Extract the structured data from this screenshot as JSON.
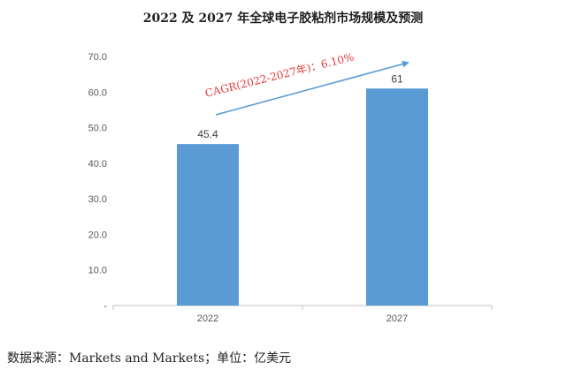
{
  "chart_data": {
    "type": "bar",
    "title": "2022 及 2027 年全球电子胶粘剂市场规模及预测",
    "categories": [
      "2022",
      "2027"
    ],
    "values": [
      45.4,
      61
    ],
    "value_labels": [
      "45.4",
      "61"
    ],
    "ylim": [
      0,
      70
    ],
    "yticks": [
      "-",
      "10.0",
      "20.0",
      "30.0",
      "40.0",
      "50.0",
      "60.0",
      "70.0"
    ],
    "grid": false,
    "bar_color": "#5b9bd5",
    "annotation": {
      "text": "CAGR(2022-2027年)：6.10%",
      "color": "#e33a3a",
      "arrow_color": "#5b9bd5"
    }
  },
  "footer": {
    "source": "数据来源：Markets and Markets；单位：亿美元"
  }
}
